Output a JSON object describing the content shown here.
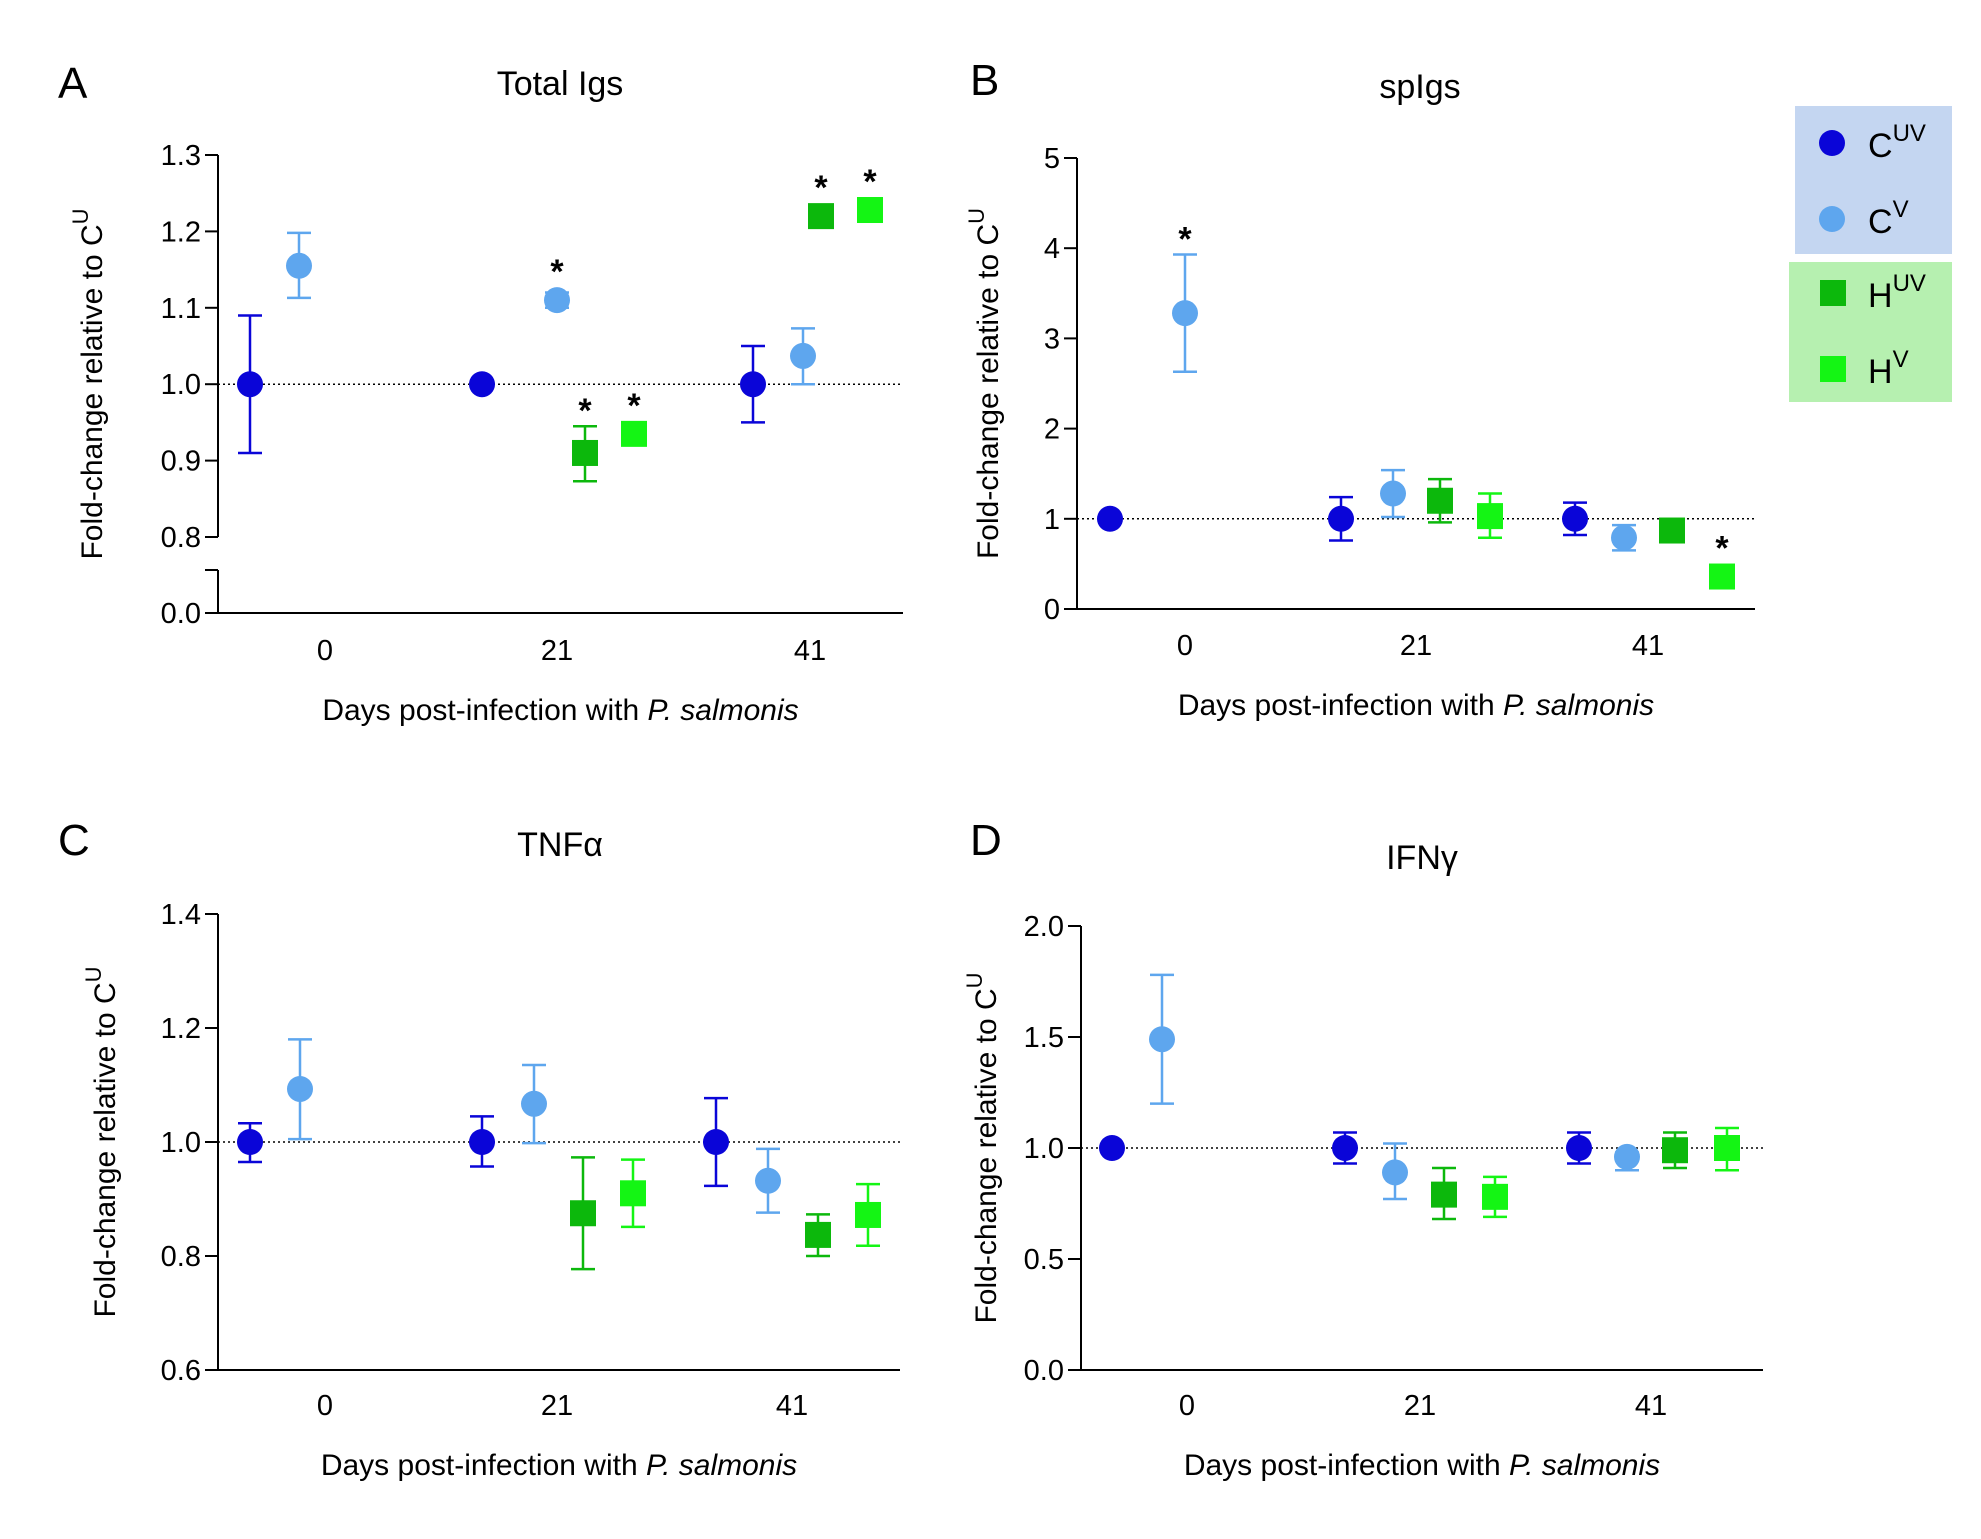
{
  "colors": {
    "C_UV": "#0a05d8",
    "C_V": "#5ea6ee",
    "H_UV": "#0cb80c",
    "H_V": "#14f514",
    "legend_C_bg": "#c4d6f1",
    "legend_H_bg": "#b6f0b0"
  },
  "legend": {
    "items": [
      {
        "key": "C_UV",
        "base": "C",
        "sup": "UV",
        "marker": "circle"
      },
      {
        "key": "C_V",
        "base": "C",
        "sup": "V",
        "marker": "circle"
      },
      {
        "key": "H_UV",
        "base": "H",
        "sup": "UV",
        "marker": "square"
      },
      {
        "key": "H_V",
        "base": "H",
        "sup": "V",
        "marker": "square"
      }
    ]
  },
  "chart_data": [
    {
      "type": "scatter",
      "panel": "A",
      "title": "Total Igs",
      "ylabel": "Fold-change relative to C",
      "ylabel_sup": "U",
      "xlabel_prefix": "Days post-infection with ",
      "xlabel_italic": "P. salmonis",
      "categories": [
        "0",
        "21",
        "41"
      ],
      "yticks": [
        "0.0",
        "0.8",
        "0.9",
        "1.0",
        "1.1",
        "1.2",
        "1.3"
      ],
      "ylim": [
        0.8,
        1.3
      ],
      "y_axis_break": true,
      "reference_line": 1.0,
      "series": [
        {
          "name": "CUV",
          "key": "C_UV",
          "points": [
            {
              "category": "0",
              "y": 1.0,
              "lo": 0.91,
              "hi": 1.09,
              "sig": false
            },
            {
              "category": "21",
              "y": 1.0,
              "lo": 1.0,
              "hi": 1.0,
              "sig": false
            },
            {
              "category": "41",
              "y": 1.0,
              "lo": 0.95,
              "hi": 1.05,
              "sig": false
            }
          ]
        },
        {
          "name": "CV",
          "key": "C_V",
          "points": [
            {
              "category": "0",
              "y": 1.155,
              "lo": 1.113,
              "hi": 1.198,
              "sig": false
            },
            {
              "category": "21",
              "y": 1.11,
              "lo": 1.1,
              "hi": 1.12,
              "sig": true
            },
            {
              "category": "41",
              "y": 1.037,
              "lo": 1.0,
              "hi": 1.073,
              "sig": false
            }
          ]
        },
        {
          "name": "HUV",
          "key": "H_UV",
          "points": [
            {
              "category": "21",
              "y": 0.91,
              "lo": 0.873,
              "hi": 0.945,
              "sig": true
            },
            {
              "category": "41",
              "y": 1.22,
              "lo": 1.212,
              "hi": 1.228,
              "sig": true
            }
          ]
        },
        {
          "name": "HV",
          "key": "H_V",
          "points": [
            {
              "category": "21",
              "y": 0.935,
              "lo": 0.927,
              "hi": 0.943,
              "sig": true
            },
            {
              "category": "41",
              "y": 1.228,
              "lo": 1.22,
              "hi": 1.236,
              "sig": true
            }
          ]
        }
      ]
    },
    {
      "type": "scatter",
      "panel": "B",
      "title": "spIgs",
      "ylabel": "Fold-change relative to C",
      "ylabel_sup": "U",
      "xlabel_prefix": "Days post-infection with ",
      "xlabel_italic": "P. salmonis",
      "categories": [
        "0",
        "21",
        "41"
      ],
      "yticks": [
        "0",
        "1",
        "2",
        "3",
        "4",
        "5"
      ],
      "ylim": [
        0,
        5
      ],
      "reference_line": 1.0,
      "series": [
        {
          "name": "CUV",
          "key": "C_UV",
          "points": [
            {
              "category": "0",
              "y": 1.0,
              "lo": 1.0,
              "hi": 1.0,
              "sig": false
            },
            {
              "category": "21",
              "y": 1.0,
              "lo": 0.76,
              "hi": 1.24,
              "sig": false
            },
            {
              "category": "41",
              "y": 1.0,
              "lo": 0.82,
              "hi": 1.18,
              "sig": false
            }
          ]
        },
        {
          "name": "CV",
          "key": "C_V",
          "points": [
            {
              "category": "0",
              "y": 3.28,
              "lo": 2.63,
              "hi": 3.93,
              "sig": true
            },
            {
              "category": "21",
              "y": 1.28,
              "lo": 1.02,
              "hi": 1.54,
              "sig": false
            },
            {
              "category": "41",
              "y": 0.79,
              "lo": 0.65,
              "hi": 0.93,
              "sig": false
            }
          ]
        },
        {
          "name": "HUV",
          "key": "H_UV",
          "points": [
            {
              "category": "21",
              "y": 1.2,
              "lo": 0.96,
              "hi": 1.44,
              "sig": false
            },
            {
              "category": "41",
              "y": 0.87,
              "lo": 0.87,
              "hi": 0.87,
              "sig": false
            }
          ]
        },
        {
          "name": "HV",
          "key": "H_V",
          "points": [
            {
              "category": "21",
              "y": 1.03,
              "lo": 0.79,
              "hi": 1.28,
              "sig": false
            },
            {
              "category": "41",
              "y": 0.36,
              "lo": 0.36,
              "hi": 0.36,
              "sig": true
            }
          ]
        }
      ]
    },
    {
      "type": "scatter",
      "panel": "C",
      "title": "TNFα",
      "ylabel": "Fold-change relative to C",
      "ylabel_sup": "U",
      "xlabel_prefix": "Days post-infection with ",
      "xlabel_italic": "P. salmonis",
      "categories": [
        "0",
        "21",
        "41"
      ],
      "yticks": [
        "0.6",
        "0.8",
        "1.0",
        "1.2",
        "1.4"
      ],
      "ylim": [
        0.6,
        1.4
      ],
      "reference_line": 1.0,
      "series": [
        {
          "name": "CUV",
          "key": "C_UV",
          "points": [
            {
              "category": "0",
              "y": 1.0,
              "lo": 0.965,
              "hi": 1.033,
              "sig": false
            },
            {
              "category": "21",
              "y": 1.0,
              "lo": 0.957,
              "hi": 1.045,
              "sig": false
            },
            {
              "category": "41",
              "y": 1.0,
              "lo": 0.923,
              "hi": 1.077,
              "sig": false
            }
          ]
        },
        {
          "name": "CV",
          "key": "C_V",
          "points": [
            {
              "category": "0",
              "y": 1.093,
              "lo": 1.005,
              "hi": 1.18,
              "sig": false
            },
            {
              "category": "21",
              "y": 1.067,
              "lo": 0.998,
              "hi": 1.135,
              "sig": false
            },
            {
              "category": "41",
              "y": 0.932,
              "lo": 0.876,
              "hi": 0.988,
              "sig": false
            }
          ]
        },
        {
          "name": "HUV",
          "key": "H_UV",
          "points": [
            {
              "category": "21",
              "y": 0.875,
              "lo": 0.777,
              "hi": 0.973,
              "sig": false
            },
            {
              "category": "41",
              "y": 0.837,
              "lo": 0.8,
              "hi": 0.873,
              "sig": false
            }
          ]
        },
        {
          "name": "HV",
          "key": "H_V",
          "points": [
            {
              "category": "21",
              "y": 0.91,
              "lo": 0.851,
              "hi": 0.969,
              "sig": false
            },
            {
              "category": "41",
              "y": 0.872,
              "lo": 0.818,
              "hi": 0.926,
              "sig": false
            }
          ]
        }
      ]
    },
    {
      "type": "scatter",
      "panel": "D",
      "title": "IFNγ",
      "ylabel": "Fold-change relative to C",
      "ylabel_sup": "U",
      "xlabel_prefix": "Days post-infection with ",
      "xlabel_italic": "P. salmonis",
      "categories": [
        "0",
        "21",
        "41"
      ],
      "yticks": [
        "0.0",
        "0.5",
        "1.0",
        "1.5",
        "2.0"
      ],
      "ylim": [
        0,
        2
      ],
      "reference_line": 1.0,
      "series": [
        {
          "name": "CUV",
          "key": "C_UV",
          "points": [
            {
              "category": "0",
              "y": 1.0,
              "lo": 1.0,
              "hi": 1.0,
              "sig": false
            },
            {
              "category": "21",
              "y": 1.0,
              "lo": 0.93,
              "hi": 1.07,
              "sig": false
            },
            {
              "category": "41",
              "y": 1.0,
              "lo": 0.93,
              "hi": 1.07,
              "sig": false
            }
          ]
        },
        {
          "name": "CV",
          "key": "C_V",
          "points": [
            {
              "category": "0",
              "y": 1.49,
              "lo": 1.2,
              "hi": 1.78,
              "sig": false
            },
            {
              "category": "21",
              "y": 0.89,
              "lo": 0.77,
              "hi": 1.02,
              "sig": false
            },
            {
              "category": "41",
              "y": 0.96,
              "lo": 0.9,
              "hi": 0.98,
              "sig": false
            }
          ]
        },
        {
          "name": "HUV",
          "key": "H_UV",
          "points": [
            {
              "category": "21",
              "y": 0.79,
              "lo": 0.68,
              "hi": 0.91,
              "sig": false
            },
            {
              "category": "41",
              "y": 0.99,
              "lo": 0.91,
              "hi": 1.07,
              "sig": false
            }
          ]
        },
        {
          "name": "HV",
          "key": "H_V",
          "points": [
            {
              "category": "21",
              "y": 0.78,
              "lo": 0.69,
              "hi": 0.87,
              "sig": false
            },
            {
              "category": "41",
              "y": 1.0,
              "lo": 0.9,
              "hi": 1.09,
              "sig": false
            }
          ]
        }
      ]
    }
  ]
}
